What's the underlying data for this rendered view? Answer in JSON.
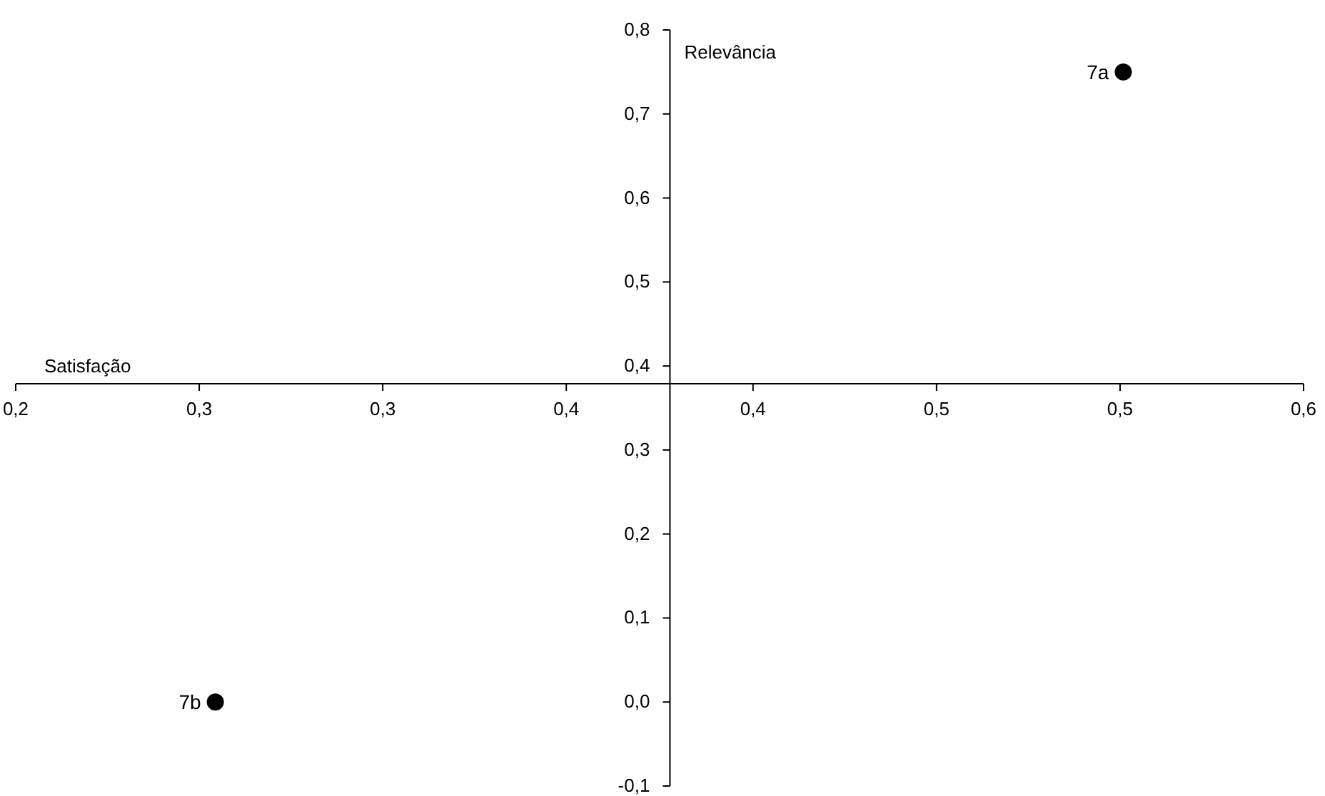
{
  "chart_data": {
    "type": "scatter",
    "xlabel": "Satisfação",
    "ylabel": "Relevância",
    "xlim": [
      0.2,
      0.6
    ],
    "ylim": [
      -0.1,
      0.8
    ],
    "xticks": [
      {
        "value": 0.2,
        "label": "0,2"
      },
      {
        "value": 0.257,
        "label": "0,3"
      },
      {
        "value": 0.314,
        "label": "0,3"
      },
      {
        "value": 0.371,
        "label": "0,4"
      },
      {
        "value": 0.429,
        "label": "0,4"
      },
      {
        "value": 0.486,
        "label": "0,5"
      },
      {
        "value": 0.543,
        "label": "0,5"
      },
      {
        "value": 0.6,
        "label": "0,6"
      }
    ],
    "yticks": [
      {
        "value": -0.1,
        "label": "-0,1"
      },
      {
        "value": 0,
        "label": "0,0"
      },
      {
        "value": 0.1,
        "label": "0,1"
      },
      {
        "value": 0.2,
        "label": "0,2"
      },
      {
        "value": 0.3,
        "label": "0,3"
      },
      {
        "value": 0.4,
        "label": "0,4"
      },
      {
        "value": 0.5,
        "label": "0,5"
      },
      {
        "value": 0.6,
        "label": "0,6"
      },
      {
        "value": 0.7,
        "label": "0,7"
      },
      {
        "value": 0.8,
        "label": "0,8"
      }
    ],
    "series": [
      {
        "color": "#000000",
        "x": [
          0.544,
          0.262
        ],
        "values": [
          0.75,
          0.0
        ]
      }
    ],
    "annotations": [
      {
        "text": "7a",
        "x": 0.544,
        "y": 0.75
      },
      {
        "text": "7b",
        "x": 0.262,
        "y": 0.0
      }
    ],
    "marker": "circle"
  }
}
